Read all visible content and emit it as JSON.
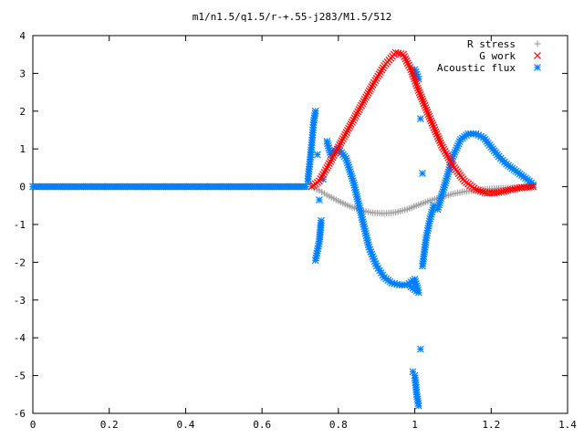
{
  "chart_data": {
    "type": "scatter",
    "title": "m1/n1.5/q1.5/r-+.55-j283/M1.5/512",
    "xlabel": "",
    "ylabel": "",
    "xlim": [
      0,
      1.4
    ],
    "ylim": [
      -6,
      4
    ],
    "x_ticks": [
      "0",
      "0.2",
      "0.4",
      "0.6",
      "0.8",
      "1",
      "1.2",
      "1.4"
    ],
    "y_ticks": [
      "4",
      "3",
      "2",
      "1",
      "0",
      "-1",
      "-2",
      "-3",
      "-4",
      "-5",
      "-6"
    ],
    "grid": false,
    "legend_position": "top-right",
    "series": [
      {
        "name": "R stress",
        "marker": "plus",
        "color": "#a0a0a0",
        "points": [
          [
            0.73,
            0.0
          ],
          [
            0.75,
            -0.1
          ],
          [
            0.77,
            -0.22
          ],
          [
            0.8,
            -0.38
          ],
          [
            0.83,
            -0.52
          ],
          [
            0.86,
            -0.63
          ],
          [
            0.89,
            -0.69
          ],
          [
            0.92,
            -0.71
          ],
          [
            0.95,
            -0.68
          ],
          [
            0.98,
            -0.6
          ],
          [
            1.01,
            -0.48
          ],
          [
            1.04,
            -0.37
          ],
          [
            1.07,
            -0.27
          ],
          [
            1.1,
            -0.19
          ],
          [
            1.13,
            -0.13
          ],
          [
            1.16,
            -0.09
          ],
          [
            1.19,
            -0.06
          ],
          [
            1.22,
            -0.04
          ],
          [
            1.25,
            -0.03
          ],
          [
            1.28,
            -0.02
          ],
          [
            1.31,
            0.0
          ]
        ]
      },
      {
        "name": "G work",
        "marker": "cross",
        "color": "#ff0000",
        "points": [
          [
            0.73,
            0.0
          ],
          [
            0.75,
            0.15
          ],
          [
            0.77,
            0.5
          ],
          [
            0.8,
            1.05
          ],
          [
            0.83,
            1.6
          ],
          [
            0.86,
            2.15
          ],
          [
            0.89,
            2.7
          ],
          [
            0.92,
            3.2
          ],
          [
            0.95,
            3.55
          ],
          [
            0.97,
            3.5
          ],
          [
            0.99,
            3.1
          ],
          [
            1.01,
            2.55
          ],
          [
            1.04,
            1.8
          ],
          [
            1.07,
            1.1
          ],
          [
            1.1,
            0.55
          ],
          [
            1.13,
            0.15
          ],
          [
            1.16,
            -0.08
          ],
          [
            1.19,
            -0.17
          ],
          [
            1.22,
            -0.15
          ],
          [
            1.25,
            -0.08
          ],
          [
            1.28,
            -0.02
          ],
          [
            1.31,
            0.0
          ]
        ]
      },
      {
        "name": "Acoustic flux",
        "marker": "star",
        "color": "#0080ff",
        "points": [
          [
            0.72,
            0.15
          ],
          [
            0.73,
            1.1
          ],
          [
            0.735,
            1.7
          ],
          [
            0.74,
            2.0
          ],
          [
            0.745,
            0.85
          ],
          [
            0.75,
            -0.35
          ],
          [
            0.74,
            -1.95
          ],
          [
            0.745,
            -1.7
          ],
          [
            0.75,
            -1.45
          ],
          [
            0.755,
            -0.9
          ],
          [
            0.76,
            0.2
          ],
          [
            0.77,
            1.2
          ],
          [
            0.78,
            0.85
          ],
          [
            0.79,
            0.95
          ],
          [
            0.8,
            1.0
          ],
          [
            0.82,
            0.75
          ],
          [
            0.84,
            0.1
          ],
          [
            0.86,
            -0.75
          ],
          [
            0.88,
            -1.6
          ],
          [
            0.9,
            -2.1
          ],
          [
            0.92,
            -2.4
          ],
          [
            0.94,
            -2.55
          ],
          [
            0.96,
            -2.6
          ],
          [
            0.98,
            -2.6
          ],
          [
            1.0,
            -2.45
          ],
          [
            1.01,
            -2.8
          ],
          [
            0.99,
            -2.65
          ],
          [
            0.995,
            -4.9
          ],
          [
            1.0,
            -5.0
          ],
          [
            1.005,
            -5.5
          ],
          [
            1.01,
            -5.8
          ],
          [
            1.015,
            -4.3
          ],
          [
            1.02,
            -2.1
          ],
          [
            1.03,
            -1.35
          ],
          [
            1.04,
            -0.85
          ],
          [
            1.05,
            -0.5
          ],
          [
            1.0,
            3.1
          ],
          [
            1.01,
            2.85
          ],
          [
            1.015,
            1.8
          ],
          [
            1.02,
            0.35
          ],
          [
            1.06,
            -0.6
          ],
          [
            1.08,
            0.1
          ],
          [
            1.1,
            0.8
          ],
          [
            1.12,
            1.25
          ],
          [
            1.14,
            1.4
          ],
          [
            1.16,
            1.4
          ],
          [
            1.18,
            1.3
          ],
          [
            1.2,
            1.05
          ],
          [
            1.22,
            0.8
          ],
          [
            1.24,
            0.6
          ],
          [
            1.26,
            0.45
          ],
          [
            1.28,
            0.3
          ],
          [
            1.3,
            0.15
          ],
          [
            1.31,
            0.05
          ]
        ]
      }
    ]
  }
}
